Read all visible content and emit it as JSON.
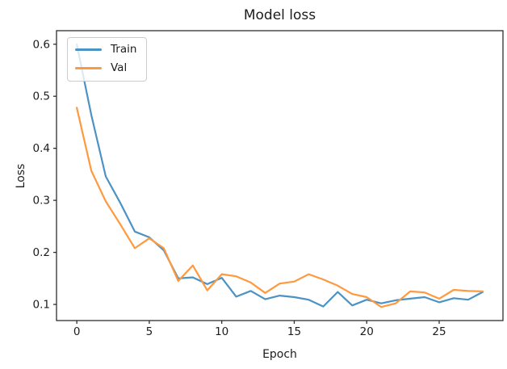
{
  "chart_data": {
    "type": "line",
    "title": "Model loss",
    "xlabel": "Epoch",
    "ylabel": "Loss",
    "x": [
      0,
      1,
      2,
      3,
      4,
      5,
      6,
      7,
      8,
      9,
      10,
      11,
      12,
      13,
      14,
      15,
      16,
      17,
      18,
      19,
      20,
      21,
      22,
      23,
      24,
      25,
      26,
      27,
      28
    ],
    "series": [
      {
        "name": "Train",
        "color": "#4c92c3",
        "values": [
          0.6,
          0.464,
          0.346,
          0.295,
          0.24,
          0.229,
          0.204,
          0.15,
          0.152,
          0.139,
          0.151,
          0.115,
          0.126,
          0.11,
          0.117,
          0.114,
          0.109,
          0.096,
          0.124,
          0.098,
          0.109,
          0.102,
          0.108,
          0.111,
          0.114,
          0.104,
          0.112,
          0.109,
          0.124
        ]
      },
      {
        "name": "Val",
        "color": "#ff993e",
        "values": [
          0.478,
          0.357,
          0.298,
          0.254,
          0.208,
          0.227,
          0.208,
          0.145,
          0.175,
          0.127,
          0.158,
          0.154,
          0.142,
          0.122,
          0.14,
          0.144,
          0.158,
          0.148,
          0.136,
          0.12,
          0.114,
          0.095,
          0.102,
          0.125,
          0.123,
          0.111,
          0.128,
          0.126,
          0.125
        ]
      }
    ],
    "xticks": [
      0,
      5,
      10,
      15,
      20,
      25
    ],
    "xtick_labels": [
      "0",
      "5",
      "10",
      "15",
      "20",
      "25"
    ],
    "yticks": [
      0.1,
      0.2,
      0.3,
      0.4,
      0.5,
      0.6
    ],
    "ytick_labels": [
      "0.1",
      "0.2",
      "0.3",
      "0.4",
      "0.5",
      "0.6"
    ],
    "xlim": [
      -1.4,
      29.4
    ],
    "ylim": [
      0.069,
      0.626
    ],
    "grid": false,
    "legend_position": "upper left"
  },
  "style": {
    "spine_color": "#2e2e2e",
    "text_color": "#1c1c1c",
    "background": "#ffffff"
  }
}
